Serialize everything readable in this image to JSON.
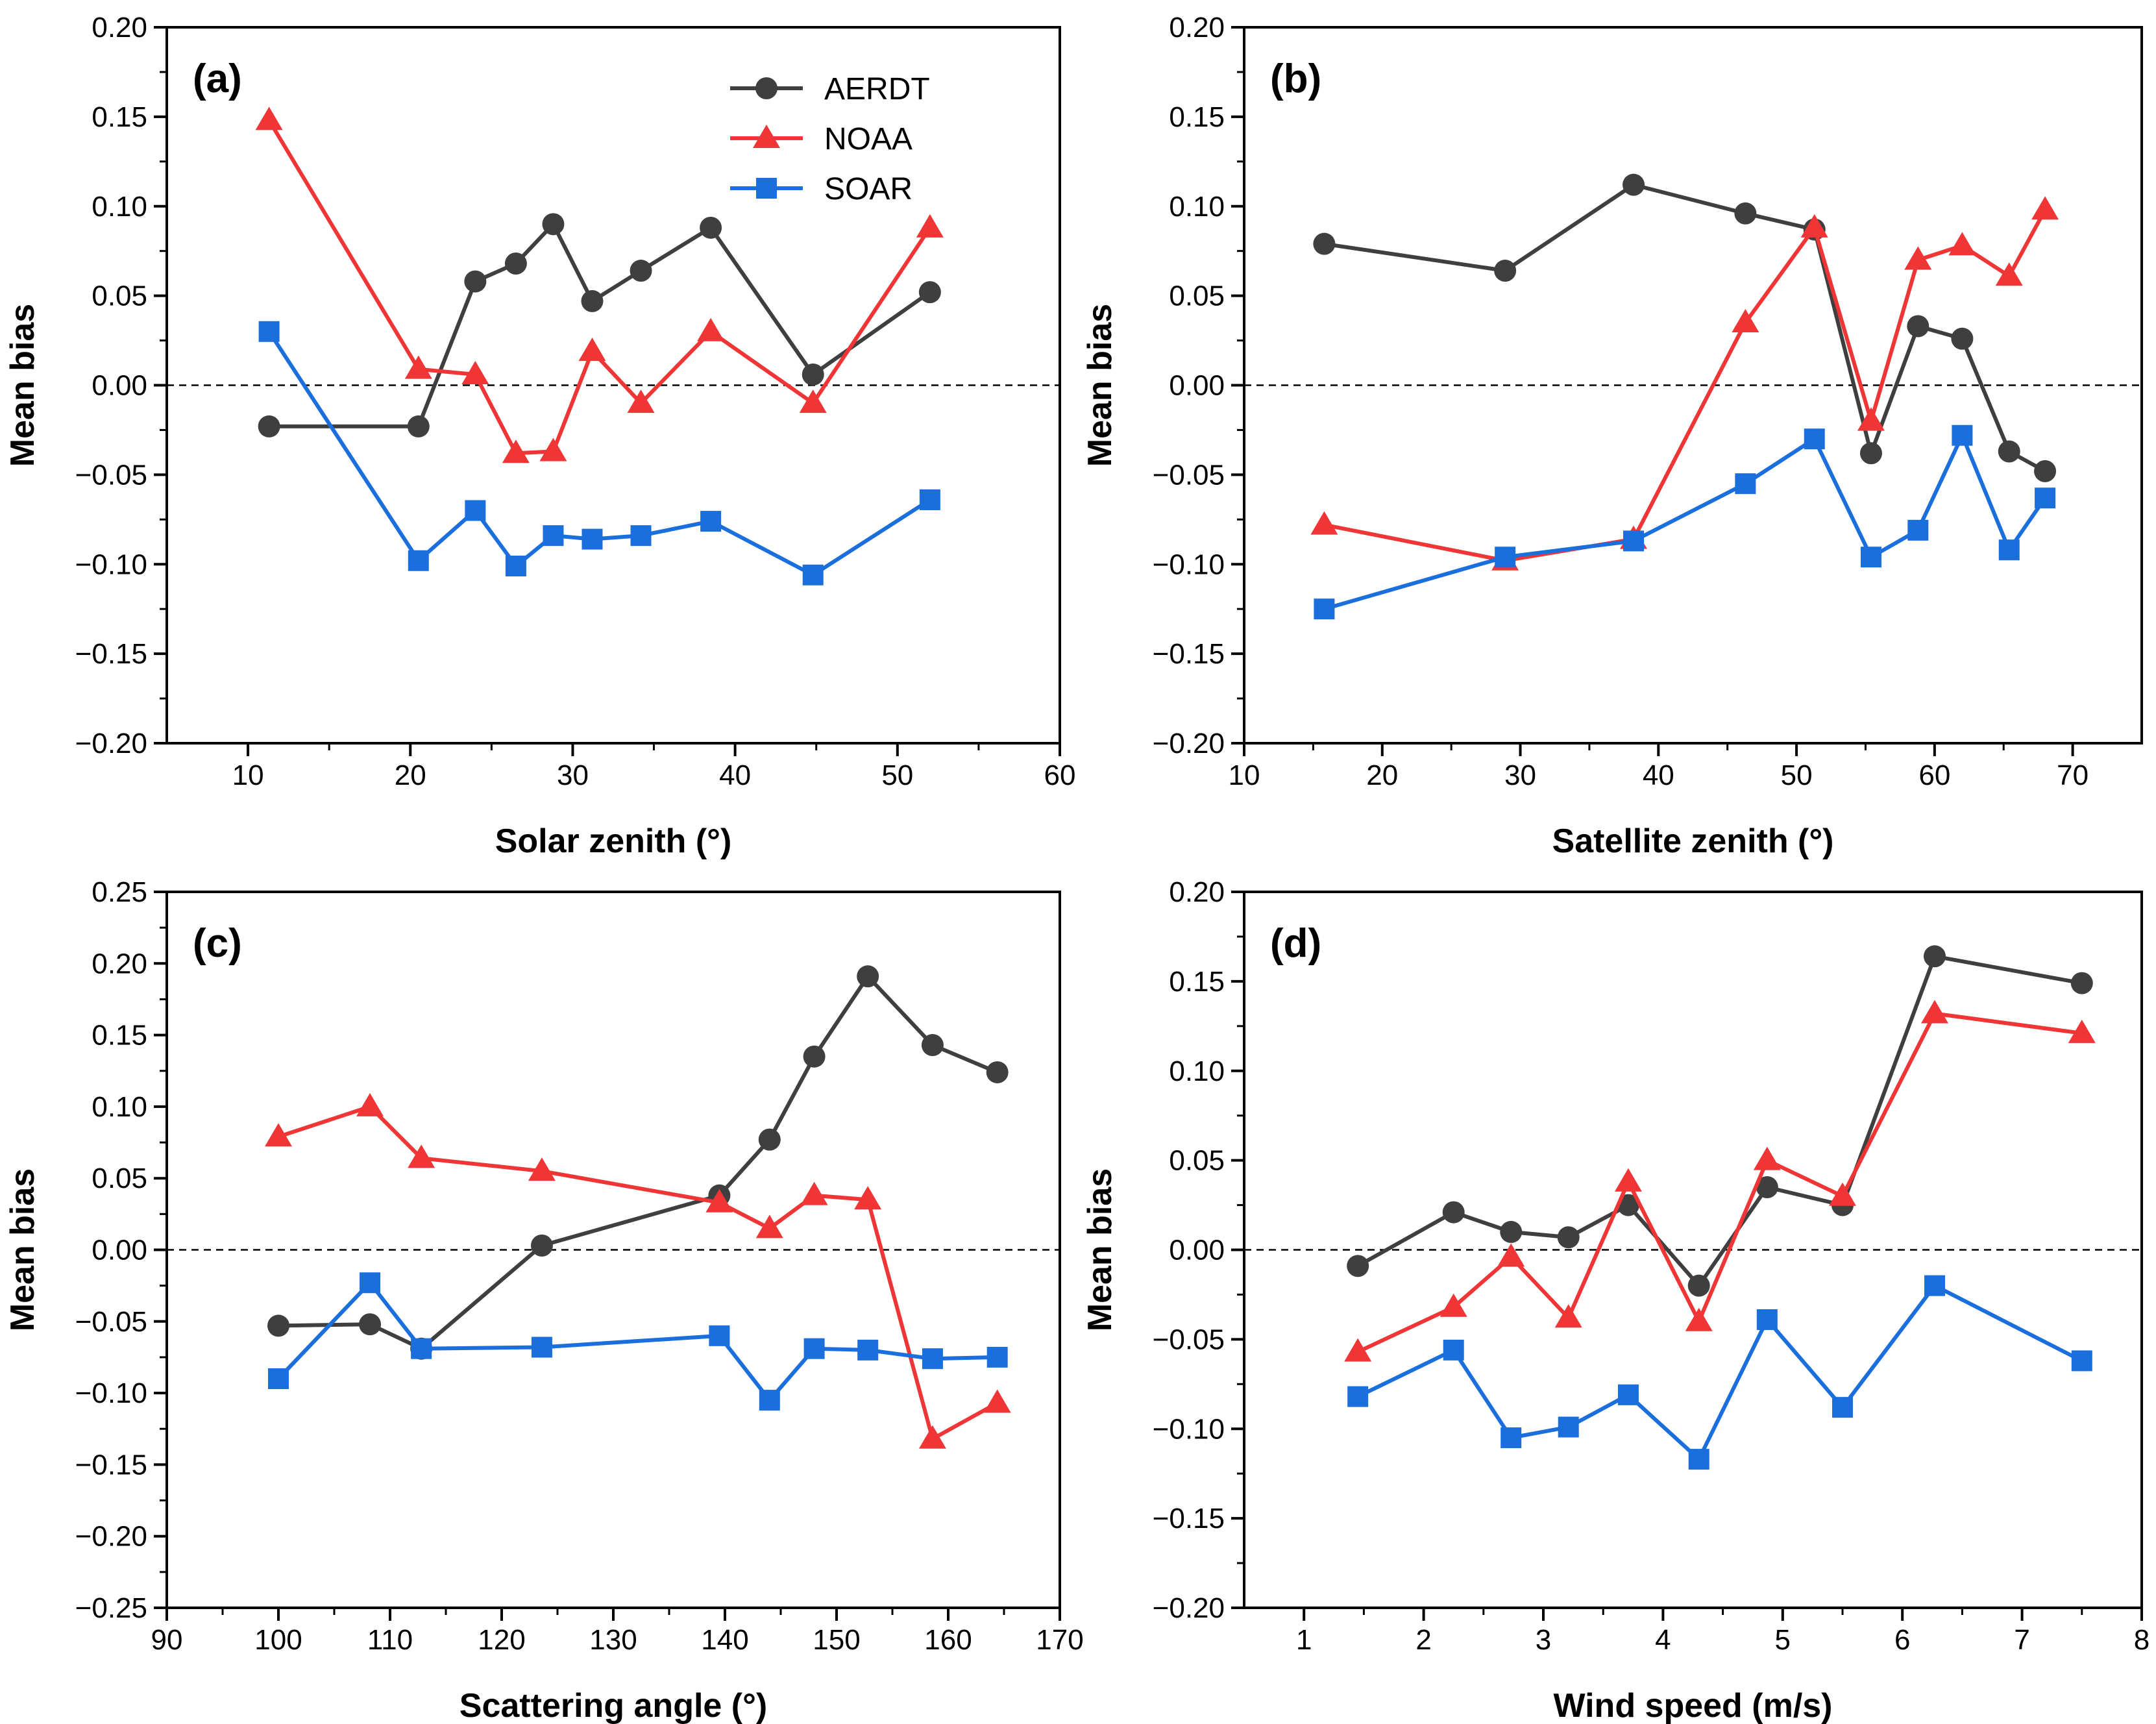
{
  "colors": {
    "AERDT": "#3f3f3f",
    "NOAA": "#ef3535",
    "SOAR": "#1a6fdc"
  },
  "markers": {
    "AERDT": "circle",
    "NOAA": "triangle",
    "SOAR": "square"
  },
  "legend": {
    "entries": [
      "AERDT",
      "NOAA",
      "SOAR"
    ],
    "placement": "top-right of panel (a)"
  },
  "chart_data": [
    {
      "type": "line",
      "panel": "(a)",
      "xlabel": "Solar zenith (°)",
      "ylabel": "Mean bias",
      "xlim": [
        5,
        60
      ],
      "xticks": [
        10,
        20,
        30,
        40,
        50,
        60
      ],
      "ylim": [
        -0.2,
        0.2
      ],
      "yticks": [
        -0.2,
        -0.15,
        -0.1,
        -0.05,
        0.0,
        0.05,
        0.1,
        0.15,
        0.2
      ],
      "ytick_labels": [
        "−0.20",
        "−0.15",
        "−0.10",
        "−0.05",
        "0.00",
        "0.05",
        "0.10",
        "0.15",
        "0.20"
      ],
      "reference_line": 0,
      "series": [
        {
          "name": "AERDT",
          "x": [
            11.3,
            20.5,
            24.0,
            26.5,
            28.8,
            31.2,
            34.2,
            38.5,
            44.8,
            52.0
          ],
          "y": [
            -0.023,
            -0.023,
            0.058,
            0.068,
            0.09,
            0.047,
            0.064,
            0.088,
            0.006,
            0.052
          ]
        },
        {
          "name": "NOAA",
          "x": [
            11.3,
            20.5,
            24.0,
            26.5,
            28.8,
            31.2,
            34.2,
            38.5,
            44.8,
            52.0
          ],
          "y": [
            0.148,
            0.009,
            0.006,
            -0.038,
            -0.037,
            0.019,
            -0.01,
            0.03,
            -0.01,
            0.088
          ]
        },
        {
          "name": "SOAR",
          "x": [
            11.3,
            20.5,
            24.0,
            26.5,
            28.8,
            31.2,
            34.2,
            38.5,
            44.8,
            52.0
          ],
          "y": [
            0.03,
            -0.098,
            -0.07,
            -0.101,
            -0.084,
            -0.086,
            -0.084,
            -0.076,
            -0.106,
            -0.064
          ]
        }
      ]
    },
    {
      "type": "line",
      "panel": "(b)",
      "xlabel": "Satellite zenith (°)",
      "ylabel": "Mean bias",
      "xlim": [
        10,
        75
      ],
      "xticks": [
        10,
        20,
        30,
        40,
        50,
        60,
        70
      ],
      "ylim": [
        -0.2,
        0.2
      ],
      "yticks": [
        -0.2,
        -0.15,
        -0.1,
        -0.05,
        0.0,
        0.05,
        0.1,
        0.15,
        0.2
      ],
      "ytick_labels": [
        "−0.20",
        "−0.15",
        "−0.10",
        "−0.05",
        "0.00",
        "0.05",
        "0.10",
        "0.15",
        "0.20"
      ],
      "reference_line": 0,
      "series": [
        {
          "name": "AERDT",
          "x": [
            15.8,
            28.9,
            38.2,
            46.3,
            51.3,
            55.4,
            58.8,
            62.0,
            65.4,
            68.0
          ],
          "y": [
            0.079,
            0.064,
            0.112,
            0.096,
            0.087,
            -0.038,
            0.033,
            0.026,
            -0.037,
            -0.048
          ]
        },
        {
          "name": "NOAA",
          "x": [
            15.8,
            28.9,
            38.2,
            46.3,
            51.3,
            55.4,
            58.8,
            62.0,
            65.4,
            68.0
          ],
          "y": [
            -0.078,
            -0.098,
            -0.086,
            0.035,
            0.088,
            -0.02,
            0.07,
            0.078,
            0.061,
            0.098
          ]
        },
        {
          "name": "SOAR",
          "x": [
            15.8,
            28.9,
            38.2,
            46.3,
            51.3,
            55.4,
            58.8,
            62.0,
            65.4,
            68.0
          ],
          "y": [
            -0.125,
            -0.096,
            -0.087,
            -0.055,
            -0.03,
            -0.096,
            -0.081,
            -0.028,
            -0.092,
            -0.063
          ]
        }
      ]
    },
    {
      "type": "line",
      "panel": "(c)",
      "xlabel": "Scattering angle (°)",
      "ylabel": "Mean bias",
      "xlim": [
        90,
        170
      ],
      "xticks": [
        90,
        100,
        110,
        120,
        130,
        140,
        150,
        160,
        170
      ],
      "ylim": [
        -0.25,
        0.25
      ],
      "yticks": [
        -0.25,
        -0.2,
        -0.15,
        -0.1,
        -0.05,
        0.0,
        0.05,
        0.1,
        0.15,
        0.2,
        0.25
      ],
      "ytick_labels": [
        "−0.25",
        "−0.20",
        "−0.15",
        "−0.10",
        "−0.05",
        "0.00",
        "0.05",
        "0.10",
        "0.15",
        "0.20",
        "0.25"
      ],
      "reference_line": 0,
      "series": [
        {
          "name": "AERDT",
          "x": [
            100.0,
            108.2,
            112.8,
            123.6,
            139.5,
            144.0,
            148.0,
            152.8,
            158.6,
            164.4
          ],
          "y": [
            -0.053,
            -0.052,
            -0.069,
            0.003,
            0.038,
            0.077,
            0.135,
            0.191,
            0.143,
            0.124
          ]
        },
        {
          "name": "NOAA",
          "x": [
            100.0,
            108.2,
            112.8,
            123.6,
            139.5,
            144.0,
            148.0,
            152.8,
            158.6,
            164.4
          ],
          "y": [
            0.079,
            0.1,
            0.064,
            0.055,
            0.033,
            0.015,
            0.038,
            0.035,
            -0.132,
            -0.107
          ]
        },
        {
          "name": "SOAR",
          "x": [
            100.0,
            108.2,
            112.8,
            123.6,
            139.5,
            144.0,
            148.0,
            152.8,
            158.6,
            164.4
          ],
          "y": [
            -0.09,
            -0.023,
            -0.069,
            -0.068,
            -0.06,
            -0.105,
            -0.069,
            -0.07,
            -0.076,
            -0.075
          ]
        }
      ]
    },
    {
      "type": "line",
      "panel": "(d)",
      "xlabel": "Wind speed (m/s)",
      "ylabel": "Mean bias",
      "xlim": [
        0.5,
        8
      ],
      "xticks": [
        1,
        2,
        3,
        4,
        5,
        6,
        7,
        8
      ],
      "ylim": [
        -0.2,
        0.2
      ],
      "yticks": [
        -0.2,
        -0.15,
        -0.1,
        -0.05,
        0.0,
        0.05,
        0.1,
        0.15,
        0.2
      ],
      "ytick_labels": [
        "−0.20",
        "−0.15",
        "−0.10",
        "−0.05",
        "0.00",
        "0.05",
        "0.10",
        "0.15",
        "0.20"
      ],
      "reference_line": 0,
      "series": [
        {
          "name": "AERDT",
          "x": [
            1.45,
            2.25,
            2.73,
            3.21,
            3.71,
            4.3,
            4.87,
            5.5,
            6.27,
            7.5
          ],
          "y": [
            -0.009,
            0.021,
            0.01,
            0.007,
            0.025,
            -0.02,
            0.035,
            0.025,
            0.164,
            0.149
          ]
        },
        {
          "name": "NOAA",
          "x": [
            1.45,
            2.25,
            2.73,
            3.21,
            3.71,
            4.3,
            4.87,
            5.5,
            6.27,
            7.5
          ],
          "y": [
            -0.057,
            -0.032,
            -0.004,
            -0.038,
            0.038,
            -0.04,
            0.05,
            0.03,
            0.132,
            0.121
          ]
        },
        {
          "name": "SOAR",
          "x": [
            1.45,
            2.25,
            2.73,
            3.21,
            3.71,
            4.3,
            4.87,
            5.5,
            6.27,
            7.5
          ],
          "y": [
            -0.082,
            -0.056,
            -0.105,
            -0.099,
            -0.081,
            -0.117,
            -0.039,
            -0.088,
            -0.02,
            -0.062
          ]
        }
      ]
    }
  ]
}
